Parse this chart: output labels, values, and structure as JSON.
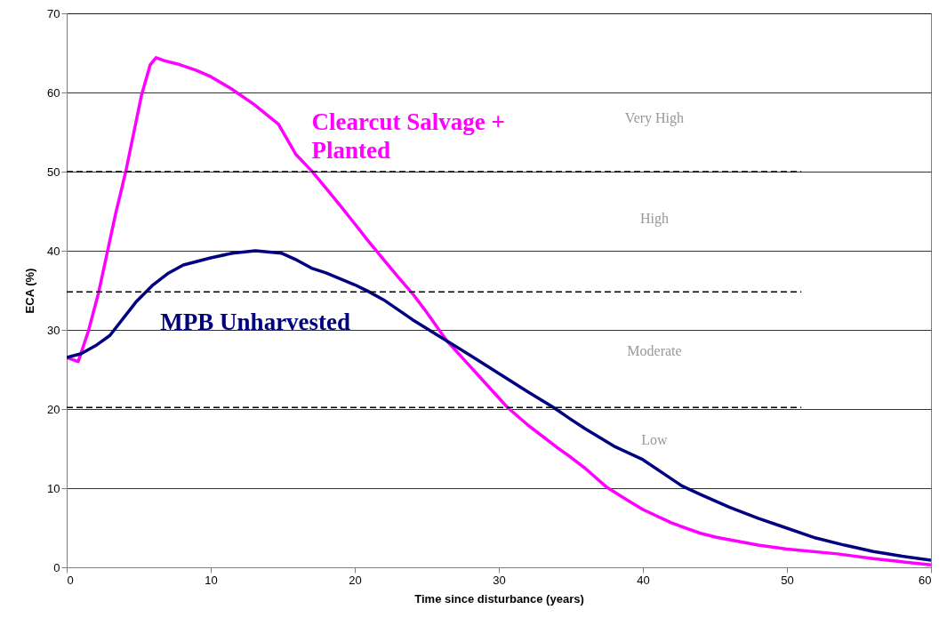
{
  "chart_data": {
    "type": "line",
    "xlabel": "Time since disturbance (years)",
    "ylabel": "ECA (%)",
    "xlim": [
      0,
      60
    ],
    "xticks": [
      0,
      10,
      20,
      30,
      40,
      50,
      60
    ],
    "ylim": [
      0,
      70
    ],
    "yticks": [
      0,
      10,
      20,
      30,
      40,
      50,
      60,
      70
    ],
    "grid": "y",
    "series": [
      {
        "name": "Clearcut Salvage + Planted",
        "color": "#ff00ff",
        "x": [
          0,
          0.8,
          1.5,
          2.2,
          3.4,
          4.1,
          5.2,
          5.8,
          6.2,
          6.8,
          7.7,
          9,
          10,
          11.4,
          13,
          14.7,
          15.9,
          17,
          18,
          19,
          20,
          20.9,
          22,
          23,
          24,
          25,
          26.4,
          27,
          28,
          29,
          30,
          30.6,
          32,
          33,
          34,
          35,
          36,
          37.5,
          39,
          40,
          42,
          44,
          45.1,
          48,
          50,
          53.5,
          56,
          58,
          60
        ],
        "values": [
          26.5,
          26,
          29.8,
          34.6,
          44.7,
          50,
          59.7,
          63.5,
          64.4,
          64,
          63.6,
          62.8,
          62,
          60.5,
          58.5,
          56,
          52.2,
          50.1,
          47.9,
          45.7,
          43.4,
          41.3,
          38.9,
          36.7,
          34.6,
          32.2,
          28.6,
          27.4,
          25.4,
          23.4,
          21.4,
          20.2,
          18,
          16.6,
          15.2,
          13.9,
          12.5,
          10.1,
          8.4,
          7.3,
          5.6,
          4.3,
          3.8,
          2.8,
          2.3,
          1.7,
          1.1,
          0.7,
          0.3
        ]
      },
      {
        "name": "MPB Unharvested",
        "color": "#000080",
        "x": [
          0,
          1,
          2,
          3,
          4.8,
          6,
          7,
          8.1,
          10,
          11.5,
          13.1,
          14.9,
          16,
          17,
          18,
          20,
          20.9,
          22,
          24,
          26.4,
          28,
          30,
          32,
          33.8,
          35,
          36,
          38,
          40,
          42.7,
          44,
          46,
          48,
          49.6,
          52,
          54,
          56,
          58,
          60
        ],
        "values": [
          26.5,
          27,
          28,
          29.3,
          33.5,
          35.7,
          37.1,
          38.2,
          39.1,
          39.7,
          40,
          39.7,
          38.8,
          37.8,
          37.2,
          35.7,
          34.9,
          33.8,
          31.3,
          28.6,
          26.8,
          24.5,
          22.2,
          20.2,
          18.7,
          17.5,
          15.3,
          13.6,
          10.3,
          9.2,
          7.6,
          6.2,
          5.2,
          3.7,
          2.8,
          2,
          1.4,
          0.9
        ]
      },
      {
        "color": "#000000",
        "line_style": "dashed",
        "x": [
          0,
          51
        ],
        "values": [
          50,
          50
        ]
      },
      {
        "color": "#000000",
        "line_style": "dashed",
        "x": [
          0,
          51
        ],
        "values": [
          34.8,
          34.8
        ]
      },
      {
        "color": "#000000",
        "line_style": "dashed",
        "x": [
          0,
          51
        ],
        "values": [
          20.2,
          20.2
        ]
      }
    ],
    "annotations": [
      "Very High",
      "High",
      "Moderate",
      "Low"
    ]
  }
}
